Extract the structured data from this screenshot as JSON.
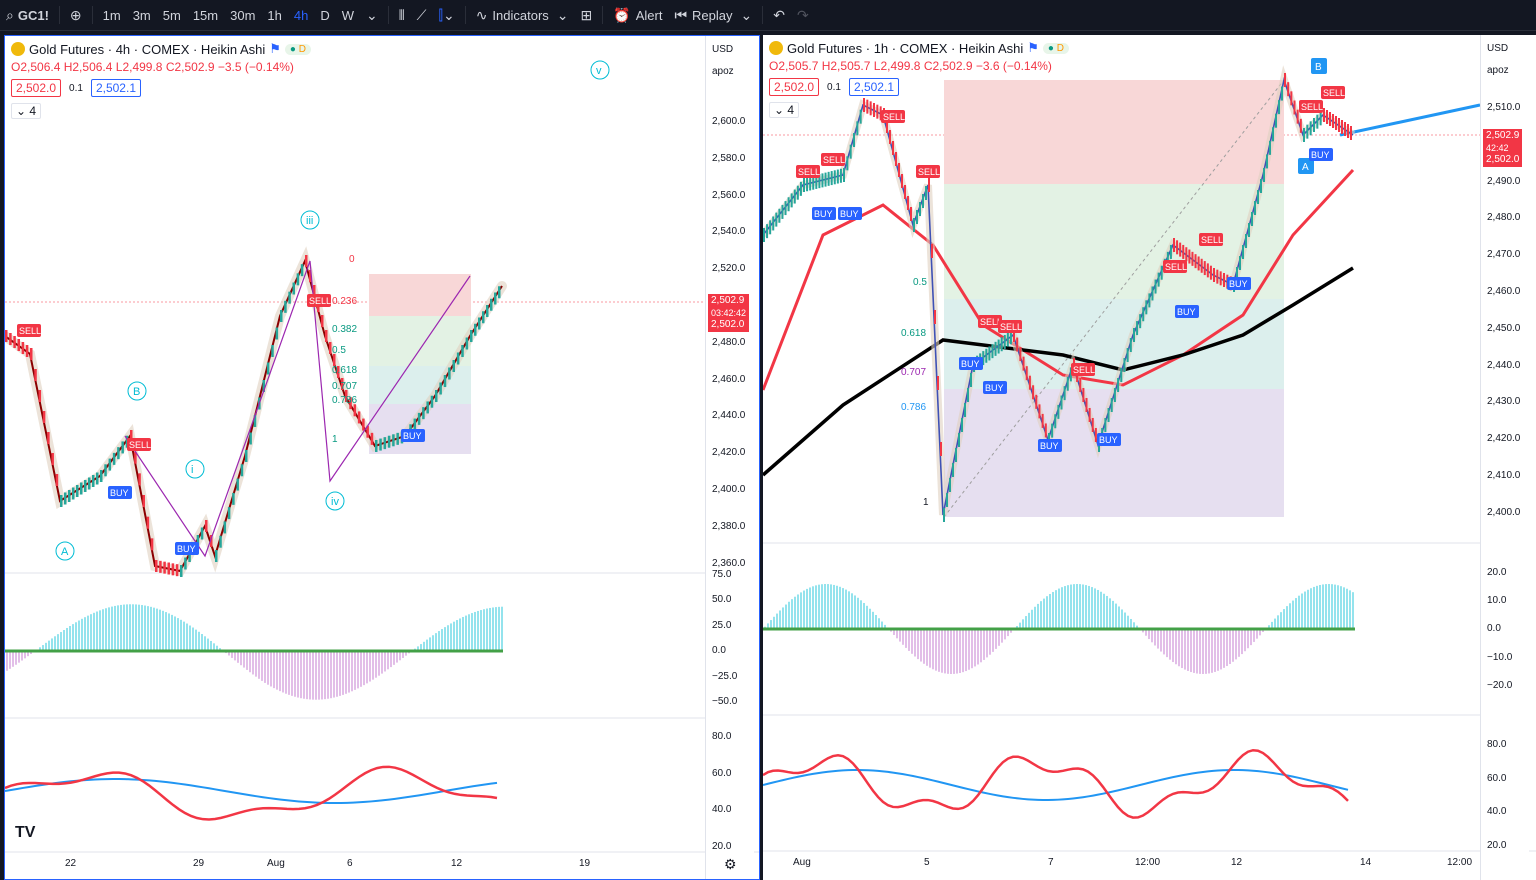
{
  "toolbar": {
    "symbol": "GC1!",
    "intervals": [
      "1m",
      "3m",
      "5m",
      "15m",
      "30m",
      "1h",
      "4h",
      "D",
      "W"
    ],
    "active_interval": "4h",
    "indicators_label": "Indicators",
    "alert_label": "Alert",
    "replay_label": "Replay"
  },
  "left": {
    "title": "Gold Futures · 4h · COMEX · Heikin Ashi",
    "badge": "D",
    "ohlc": {
      "o": "O2,506.4",
      "h": "H2,506.4",
      "l": "L2,499.8",
      "c": "C2,502.9",
      "chg": "−3.5 (−0.14%)"
    },
    "bid": "2,502.0",
    "spread": "0.1",
    "ask": "2,502.1",
    "collapse": "4",
    "currency": "USD",
    "scale": "apoz",
    "price_ticks": [
      "2,600.0",
      "2,580.0",
      "2,560.0",
      "2,540.0",
      "2,520.0",
      "2,500.0",
      "2,480.0",
      "2,460.0",
      "2,440.0",
      "2,420.0",
      "2,400.0",
      "2,380.0",
      "2,360.0"
    ],
    "cur_price": "2,502.9",
    "cur_timer": "03:42:42",
    "cur_bid": "2,502.0",
    "osc_ticks": [
      "75.0",
      "50.0",
      "25.0",
      "0.0",
      "−25.0",
      "−50.0"
    ],
    "rsi_ticks": [
      "80.0",
      "60.0",
      "40.0",
      "20.0"
    ],
    "x_ticks": [
      "22",
      "29",
      "Aug",
      "6",
      "12",
      "19"
    ],
    "waves": [
      "A",
      "B",
      "i",
      "iii",
      "iv",
      "v"
    ],
    "fib": [
      "0",
      "0.236",
      "0.382",
      "0.5",
      "0.618",
      "0.707",
      "0.786",
      "1"
    ]
  },
  "right": {
    "title": "Gold Futures · 1h · COMEX · Heikin Ashi",
    "badge": "D",
    "ohlc": {
      "o": "O2,505.7",
      "h": "H2,505.7",
      "l": "L2,499.8",
      "c": "C2,502.9",
      "chg": "−3.6 (−0.14%)"
    },
    "bid": "2,502.0",
    "spread": "0.1",
    "ask": "2,502.1",
    "collapse": "4",
    "currency": "USD",
    "scale": "apoz",
    "price_ticks": [
      "2,510.0",
      "2,500.0",
      "2,490.0",
      "2,480.0",
      "2,470.0",
      "2,460.0",
      "2,450.0",
      "2,440.0",
      "2,430.0",
      "2,420.0",
      "2,410.0",
      "2,400.0"
    ],
    "cur_price": "2,502.9",
    "cur_timer": "42:42",
    "cur_bid": "2,502.0",
    "osc_ticks": [
      "20.0",
      "10.0",
      "0.0",
      "−10.0",
      "−20.0"
    ],
    "rsi_ticks": [
      "80.0",
      "60.0",
      "40.0",
      "20.0"
    ],
    "x_ticks": [
      "Aug",
      "5",
      "7",
      "12:00",
      "12",
      "14",
      "12:00"
    ],
    "fib": [
      "0.5",
      "0.618",
      "0.707",
      "0.786",
      "1"
    ],
    "markers": [
      "A",
      "B"
    ]
  },
  "badges": {
    "sell": "SELL",
    "buy": "BUY"
  }
}
